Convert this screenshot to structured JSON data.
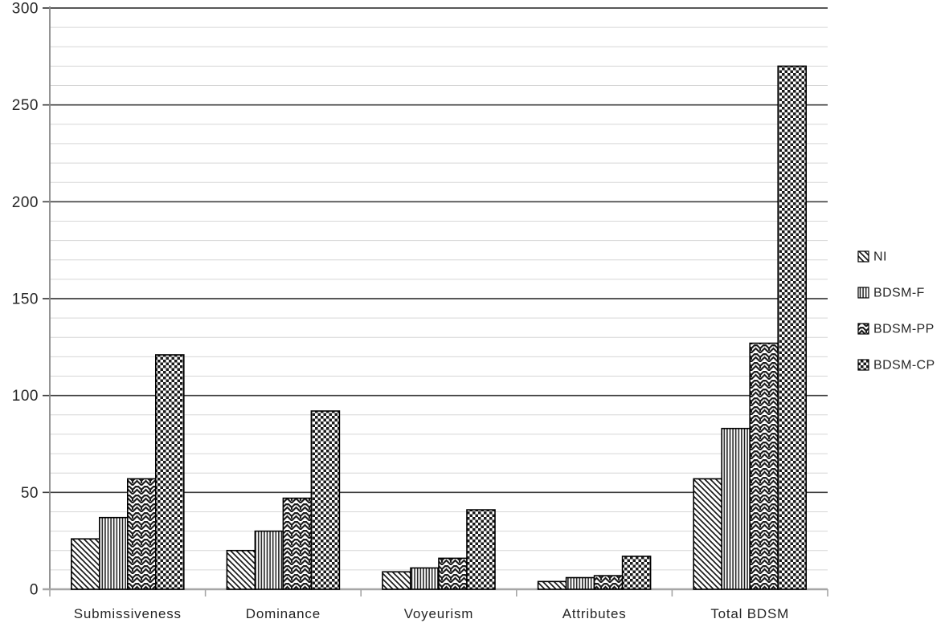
{
  "chart_data": {
    "type": "bar",
    "title": "",
    "xlabel": "",
    "ylabel": "",
    "categories": [
      "Submissiveness",
      "Dominance",
      "Voyeurism",
      "Attributes",
      "Total BDSM"
    ],
    "series": [
      {
        "name": "NI",
        "pattern": "diagonal-hatch",
        "values": [
          26,
          20,
          9,
          4,
          57
        ]
      },
      {
        "name": "BDSM-F",
        "pattern": "vertical-lines",
        "values": [
          37,
          30,
          11,
          6,
          83
        ]
      },
      {
        "name": "BDSM-PP",
        "pattern": "weave-zigzag",
        "values": [
          57,
          47,
          16,
          7,
          127
        ]
      },
      {
        "name": "BDSM-CP",
        "pattern": "checkerboard",
        "values": [
          121,
          92,
          41,
          17,
          270
        ]
      }
    ],
    "ylim": [
      0,
      300
    ],
    "y_major_step": 50,
    "y_minor_step": 10,
    "y_tick_labels": [
      "0",
      "50",
      "100",
      "150",
      "200",
      "250",
      "300"
    ],
    "grid": "major-dark, minor-light",
    "legend_position": "right",
    "legend_items": [
      "NI",
      "BDSM-F",
      "BDSM-PP",
      "BDSM-CP"
    ],
    "colors": {
      "bar_ink": "#1a1a1a",
      "bar_border": "#000000",
      "major_grid": "#3f3f3f",
      "minor_grid": "#d6d6d6",
      "axis_line": "#898989",
      "x_axis_line": "#a6a6a6",
      "text": "#262626",
      "background": "#ffffff"
    }
  }
}
